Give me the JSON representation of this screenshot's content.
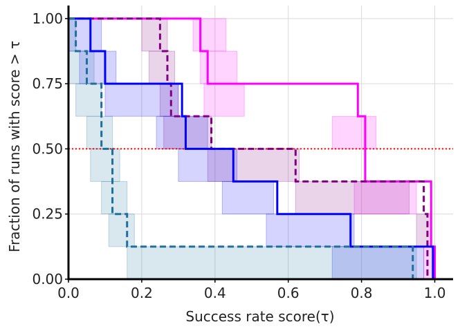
{
  "chart_data": {
    "type": "line",
    "title": "",
    "xlabel": "Success rate score(τ)",
    "ylabel": "Fraction of runs with score > τ",
    "xlim": [
      0.0,
      1.05
    ],
    "ylim": [
      0.0,
      1.05
    ],
    "xticks": [
      0.0,
      0.2,
      0.4,
      0.6,
      0.8,
      1.0
    ],
    "xtick_labels": [
      "0.0",
      "0.2",
      "0.4",
      "0.6",
      "0.8",
      "1.0"
    ],
    "yticks": [
      0.0,
      0.25,
      0.5,
      0.75,
      1.0
    ],
    "ytick_labels": [
      "0.00",
      "0.25",
      "0.50",
      "0.75",
      "1.00"
    ],
    "grid": true,
    "reference_line": {
      "y": 0.5,
      "color": "#ff0000",
      "style": "dotted"
    },
    "series": [
      {
        "name": "magenta",
        "color": "#ff00ff",
        "dash": "solid",
        "points": [
          [
            0.0,
            1.0
          ],
          [
            0.35,
            1.0
          ],
          [
            0.36,
            0.875
          ],
          [
            0.38,
            0.75
          ],
          [
            0.73,
            0.75
          ],
          [
            0.79,
            0.625
          ],
          [
            0.81,
            0.375
          ],
          [
            0.98,
            0.375
          ],
          [
            0.99,
            0.125
          ],
          [
            1.0,
            0.0
          ]
        ],
        "band": [
          [
            0.0,
            0.34,
            0.34,
            0.43
          ],
          [
            0.875,
            0.37,
            0.36,
            0.46
          ],
          [
            0.75,
            0.39,
            0.37,
            0.48
          ],
          [
            0.625,
            0.76,
            0.72,
            0.84
          ],
          [
            0.375,
            0.81,
            0.78,
            0.95
          ],
          [
            0.125,
            0.99,
            0.97,
            1.0
          ]
        ]
      },
      {
        "name": "purple",
        "color": "#800080",
        "dash": "dashed",
        "points": [
          [
            0.0,
            1.0
          ],
          [
            0.23,
            1.0
          ],
          [
            0.25,
            0.875
          ],
          [
            0.27,
            0.75
          ],
          [
            0.28,
            0.625
          ],
          [
            0.375,
            0.625
          ],
          [
            0.39,
            0.5
          ],
          [
            0.61,
            0.5
          ],
          [
            0.62,
            0.375
          ],
          [
            0.95,
            0.375
          ],
          [
            0.97,
            0.25
          ],
          [
            0.98,
            0.0
          ]
        ],
        "band": [
          [
            0.0,
            0.22,
            0.2,
            0.27
          ],
          [
            0.875,
            0.25,
            0.22,
            0.29
          ],
          [
            0.75,
            0.27,
            0.25,
            0.3
          ],
          [
            0.625,
            0.31,
            0.26,
            0.39
          ],
          [
            0.5,
            0.45,
            0.38,
            0.63
          ],
          [
            0.375,
            0.77,
            0.62,
            0.93
          ],
          [
            0.25,
            0.97,
            0.95,
            0.99
          ]
        ]
      },
      {
        "name": "blue",
        "color": "#0000ff",
        "dash": "solid",
        "points": [
          [
            0.0,
            1.0
          ],
          [
            0.05,
            1.0
          ],
          [
            0.06,
            0.875
          ],
          [
            0.09,
            0.875
          ],
          [
            0.1,
            0.75
          ],
          [
            0.29,
            0.75
          ],
          [
            0.31,
            0.625
          ],
          [
            0.32,
            0.5
          ],
          [
            0.43,
            0.5
          ],
          [
            0.45,
            0.375
          ],
          [
            0.55,
            0.375
          ],
          [
            0.57,
            0.25
          ],
          [
            0.75,
            0.25
          ],
          [
            0.77,
            0.125
          ],
          [
            0.98,
            0.125
          ],
          [
            0.995,
            0.0
          ]
        ],
        "band": [
          [
            0.0,
            0.05,
            0.0,
            0.09
          ],
          [
            0.875,
            0.08,
            0.03,
            0.13
          ],
          [
            0.75,
            0.19,
            0.1,
            0.3
          ],
          [
            0.625,
            0.29,
            0.24,
            0.38
          ],
          [
            0.5,
            0.37,
            0.3,
            0.46
          ],
          [
            0.375,
            0.53,
            0.42,
            0.56
          ],
          [
            0.25,
            0.66,
            0.54,
            0.78
          ],
          [
            0.125,
            0.88,
            0.72,
            0.97
          ]
        ]
      },
      {
        "name": "teal",
        "color": "#1f6f9b",
        "dash": "dashed",
        "points": [
          [
            0.0,
            1.0
          ],
          [
            0.02,
            0.875
          ],
          [
            0.04,
            0.875
          ],
          [
            0.05,
            0.75
          ],
          [
            0.07,
            0.75
          ],
          [
            0.09,
            0.5
          ],
          [
            0.11,
            0.5
          ],
          [
            0.12,
            0.25
          ],
          [
            0.15,
            0.25
          ],
          [
            0.16,
            0.125
          ],
          [
            0.93,
            0.125
          ],
          [
            0.94,
            0.0
          ]
        ],
        "band": [
          [
            0.0,
            0.01,
            0.0,
            0.02
          ],
          [
            0.875,
            0.03,
            0.0,
            0.07
          ],
          [
            0.75,
            0.06,
            0.02,
            0.09
          ],
          [
            0.625,
            0.07,
            0.05,
            0.12
          ],
          [
            0.5,
            0.1,
            0.06,
            0.14
          ],
          [
            0.375,
            0.12,
            0.09,
            0.16
          ],
          [
            0.25,
            0.14,
            0.11,
            0.18
          ],
          [
            0.125,
            0.53,
            0.16,
            0.95
          ]
        ]
      }
    ]
  }
}
